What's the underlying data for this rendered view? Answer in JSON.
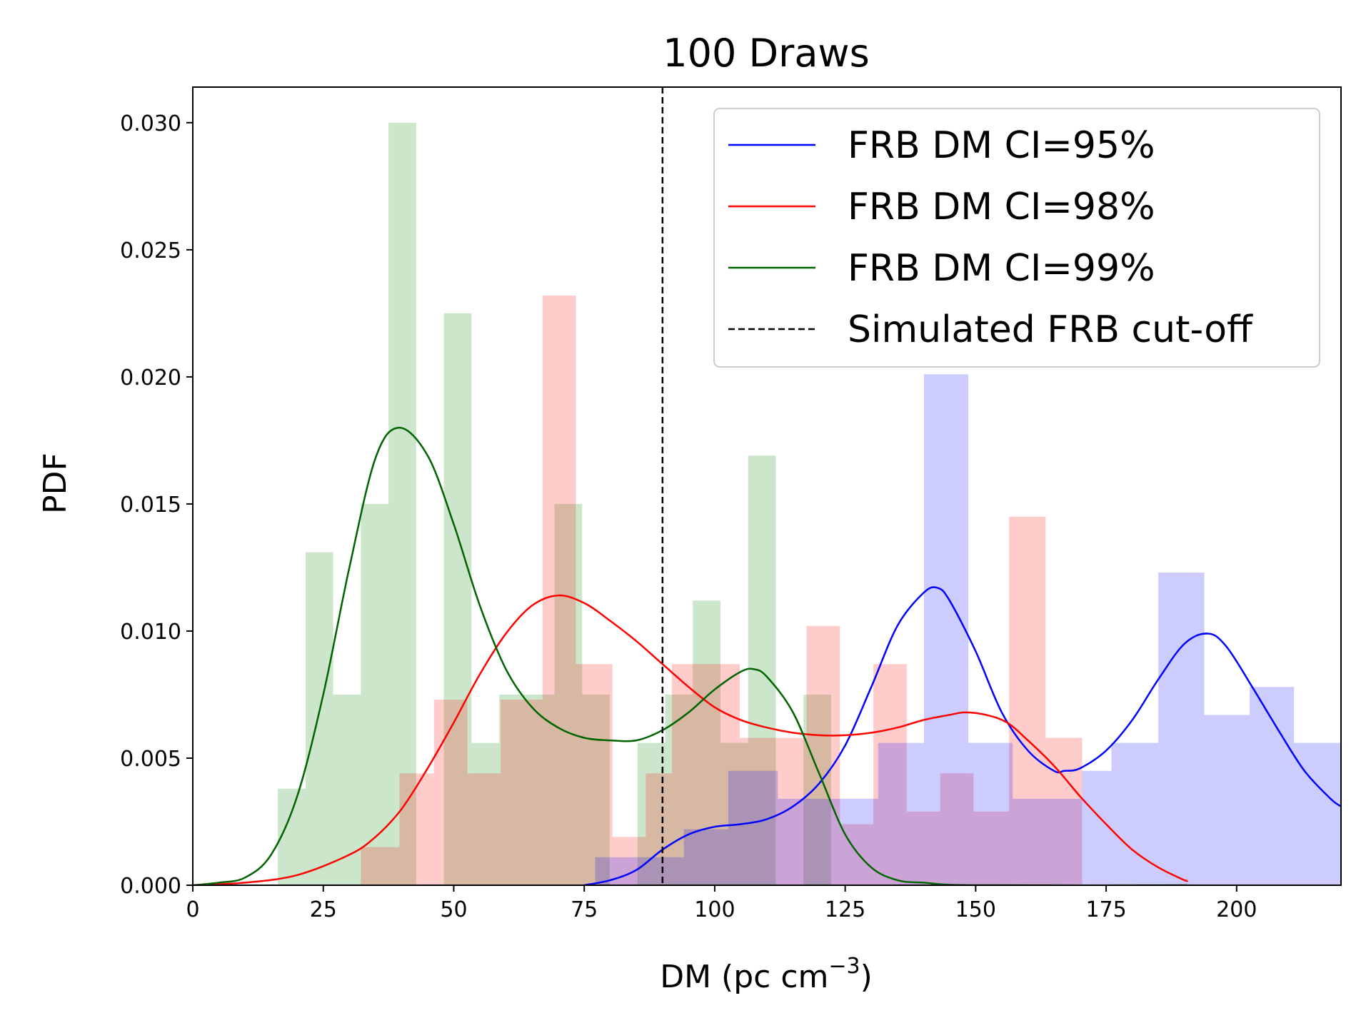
{
  "chart_data": {
    "type": "histogram+line",
    "title": "100 Draws",
    "xlabel": "DM (pc cm",
    "xlabel_sup": "−3",
    "xlabel_close": ")",
    "ylabel": "PDF",
    "xlim": [
      0,
      220
    ],
    "ylim": [
      0,
      0.0314
    ],
    "xticks": [
      0,
      25,
      50,
      75,
      100,
      125,
      150,
      175,
      200
    ],
    "xtick_labels": [
      "0",
      "25",
      "50",
      "75",
      "100",
      "125",
      "150",
      "175",
      "200"
    ],
    "yticks": [
      0.0,
      0.005,
      0.01,
      0.015,
      0.02,
      0.025,
      0.03
    ],
    "ytick_labels": [
      "0.000",
      "0.005",
      "0.010",
      "0.015",
      "0.020",
      "0.025",
      "0.030"
    ],
    "grid": false,
    "legend_position": "top-right",
    "cutoff": {
      "name": "Simulated FRB cut-off",
      "x": 90,
      "color": "#000000",
      "style": "dashed"
    },
    "histograms": [
      {
        "name": "CI=99% histogram",
        "color": "#008000",
        "bins": [
          {
            "x0": 16.3,
            "x1": 21.6,
            "y": 0.0038
          },
          {
            "x0": 21.6,
            "x1": 26.9,
            "y": 0.0131
          },
          {
            "x0": 26.9,
            "x1": 32.2,
            "y": 0.0075
          },
          {
            "x0": 32.2,
            "x1": 37.5,
            "y": 0.015
          },
          {
            "x0": 37.5,
            "x1": 42.8,
            "y": 0.03
          },
          {
            "x0": 42.8,
            "x1": 48.1,
            "y": 0.0
          },
          {
            "x0": 48.1,
            "x1": 53.4,
            "y": 0.0225
          },
          {
            "x0": 53.4,
            "x1": 58.7,
            "y": 0.0056
          },
          {
            "x0": 58.7,
            "x1": 64.0,
            "y": 0.0075
          },
          {
            "x0": 64.0,
            "x1": 69.3,
            "y": 0.0075
          },
          {
            "x0": 69.3,
            "x1": 74.6,
            "y": 0.015
          },
          {
            "x0": 74.6,
            "x1": 79.9,
            "y": 0.0075
          },
          {
            "x0": 79.9,
            "x1": 85.2,
            "y": 0.0
          },
          {
            "x0": 85.2,
            "x1": 90.5,
            "y": 0.0056
          },
          {
            "x0": 90.5,
            "x1": 95.8,
            "y": 0.0075
          },
          {
            "x0": 95.8,
            "x1": 101.1,
            "y": 0.0112
          },
          {
            "x0": 101.1,
            "x1": 106.4,
            "y": 0.0056
          },
          {
            "x0": 106.4,
            "x1": 111.7,
            "y": 0.0169
          },
          {
            "x0": 111.7,
            "x1": 117.0,
            "y": 0.0
          },
          {
            "x0": 117.0,
            "x1": 122.3,
            "y": 0.0075
          }
        ]
      },
      {
        "name": "CI=98% histogram",
        "color": "#ff0000",
        "bins": [
          {
            "x0": 32.2,
            "x1": 39.6,
            "y": 0.0015
          },
          {
            "x0": 39.6,
            "x1": 46.2,
            "y": 0.0044
          },
          {
            "x0": 46.2,
            "x1": 52.6,
            "y": 0.0073
          },
          {
            "x0": 52.6,
            "x1": 59.0,
            "y": 0.0044
          },
          {
            "x0": 59.0,
            "x1": 67.0,
            "y": 0.0073
          },
          {
            "x0": 67.0,
            "x1": 73.4,
            "y": 0.0232
          },
          {
            "x0": 73.4,
            "x1": 80.4,
            "y": 0.0087
          },
          {
            "x0": 80.4,
            "x1": 86.8,
            "y": 0.0019
          },
          {
            "x0": 86.8,
            "x1": 91.8,
            "y": 0.0044
          },
          {
            "x0": 91.8,
            "x1": 98.4,
            "y": 0.0087
          },
          {
            "x0": 98.4,
            "x1": 104.8,
            "y": 0.0087
          },
          {
            "x0": 104.8,
            "x1": 111.2,
            "y": 0.0058
          },
          {
            "x0": 111.2,
            "x1": 117.6,
            "y": 0.0058
          },
          {
            "x0": 117.6,
            "x1": 124.0,
            "y": 0.0102
          },
          {
            "x0": 124.0,
            "x1": 130.4,
            "y": 0.0024
          },
          {
            "x0": 130.4,
            "x1": 136.8,
            "y": 0.0087
          },
          {
            "x0": 136.8,
            "x1": 143.2,
            "y": 0.0029
          },
          {
            "x0": 143.2,
            "x1": 149.6,
            "y": 0.0044
          },
          {
            "x0": 149.6,
            "x1": 156.4,
            "y": 0.0029
          },
          {
            "x0": 156.4,
            "x1": 163.4,
            "y": 0.0145
          },
          {
            "x0": 163.4,
            "x1": 170.4,
            "y": 0.0058
          }
        ]
      },
      {
        "name": "CI=95% histogram",
        "color": "#0000ff",
        "bins": [
          {
            "x0": 77.1,
            "x1": 85.6,
            "y": 0.0011
          },
          {
            "x0": 85.6,
            "x1": 94.1,
            "y": 0.0011
          },
          {
            "x0": 94.1,
            "x1": 102.6,
            "y": 0.0022
          },
          {
            "x0": 102.6,
            "x1": 112.1,
            "y": 0.0045
          },
          {
            "x0": 112.1,
            "x1": 123.6,
            "y": 0.0034
          },
          {
            "x0": 123.6,
            "x1": 131.3,
            "y": 0.0034
          },
          {
            "x0": 131.3,
            "x1": 140.1,
            "y": 0.0056
          },
          {
            "x0": 140.1,
            "x1": 148.6,
            "y": 0.0201
          },
          {
            "x0": 148.6,
            "x1": 157.1,
            "y": 0.0056
          },
          {
            "x0": 157.1,
            "x1": 165.6,
            "y": 0.0034
          },
          {
            "x0": 165.6,
            "x1": 170.4,
            "y": 0.0034
          },
          {
            "x0": 170.4,
            "x1": 176.0,
            "y": 0.0045
          },
          {
            "x0": 176.0,
            "x1": 185.0,
            "y": 0.0056
          },
          {
            "x0": 185.0,
            "x1": 193.8,
            "y": 0.0123
          },
          {
            "x0": 193.8,
            "x1": 202.5,
            "y": 0.0067
          },
          {
            "x0": 202.5,
            "x1": 211.0,
            "y": 0.0078
          },
          {
            "x0": 211.0,
            "x1": 220.0,
            "y": 0.0056
          }
        ]
      }
    ],
    "series": [
      {
        "name": "FRB DM CI=95%",
        "color": "#0000ff",
        "points": [
          [
            75,
            0
          ],
          [
            80,
            0.0002
          ],
          [
            85,
            0.0006
          ],
          [
            90,
            0.0014
          ],
          [
            95,
            0.002
          ],
          [
            100,
            0.0023
          ],
          [
            105,
            0.0024
          ],
          [
            110,
            0.0026
          ],
          [
            115,
            0.0031
          ],
          [
            120,
            0.004
          ],
          [
            125,
            0.0055
          ],
          [
            130,
            0.0078
          ],
          [
            135,
            0.0102
          ],
          [
            140,
            0.0115
          ],
          [
            142.7,
            0.0117
          ],
          [
            145,
            0.0112
          ],
          [
            150,
            0.0092
          ],
          [
            155,
            0.0068
          ],
          [
            160,
            0.0053
          ],
          [
            165,
            0.0045
          ],
          [
            167,
            0.0045
          ],
          [
            170,
            0.0046
          ],
          [
            175,
            0.0053
          ],
          [
            180,
            0.0065
          ],
          [
            185,
            0.0081
          ],
          [
            190,
            0.0095
          ],
          [
            194.5,
            0.0099
          ],
          [
            198,
            0.0094
          ],
          [
            203,
            0.0078
          ],
          [
            208,
            0.0061
          ],
          [
            213,
            0.0045
          ],
          [
            218,
            0.0034
          ],
          [
            220,
            0.0031
          ]
        ]
      },
      {
        "name": "FRB DM CI=98%",
        "color": "#ff0000",
        "points": [
          [
            0,
            0
          ],
          [
            10,
            0.0001
          ],
          [
            20,
            0.0004
          ],
          [
            30,
            0.0012
          ],
          [
            35,
            0.0019
          ],
          [
            40,
            0.003
          ],
          [
            45,
            0.0046
          ],
          [
            50,
            0.0064
          ],
          [
            55,
            0.0083
          ],
          [
            60,
            0.0099
          ],
          [
            65,
            0.011
          ],
          [
            70,
            0.0114
          ],
          [
            75,
            0.0111
          ],
          [
            80,
            0.0104
          ],
          [
            85,
            0.0096
          ],
          [
            90,
            0.0087
          ],
          [
            95,
            0.0078
          ],
          [
            100,
            0.007
          ],
          [
            105,
            0.0065
          ],
          [
            110,
            0.0062
          ],
          [
            115,
            0.006
          ],
          [
            120,
            0.0059
          ],
          [
            125,
            0.0059
          ],
          [
            130,
            0.006
          ],
          [
            135,
            0.0062
          ],
          [
            140,
            0.0065
          ],
          [
            145,
            0.0067
          ],
          [
            148,
            0.0068
          ],
          [
            152,
            0.0067
          ],
          [
            156,
            0.0064
          ],
          [
            160,
            0.0057
          ],
          [
            165,
            0.0047
          ],
          [
            170,
            0.0035
          ],
          [
            175,
            0.0024
          ],
          [
            180,
            0.0014
          ],
          [
            185,
            0.0007
          ],
          [
            190,
            0.0002
          ],
          [
            190.5,
            0.0002
          ]
        ]
      },
      {
        "name": "FRB DM CI=99%",
        "color": "#006400",
        "points": [
          [
            0,
            0
          ],
          [
            5,
            0.0001
          ],
          [
            10,
            0.0003
          ],
          [
            15,
            0.0012
          ],
          [
            20,
            0.0035
          ],
          [
            25,
            0.0075
          ],
          [
            30,
            0.0125
          ],
          [
            35,
            0.0168
          ],
          [
            39.5,
            0.018
          ],
          [
            45,
            0.0169
          ],
          [
            50,
            0.0142
          ],
          [
            55,
            0.011
          ],
          [
            60,
            0.0085
          ],
          [
            65,
            0.007
          ],
          [
            70,
            0.0062
          ],
          [
            75,
            0.0058
          ],
          [
            80,
            0.0057
          ],
          [
            85,
            0.0057
          ],
          [
            90,
            0.0061
          ],
          [
            95,
            0.0068
          ],
          [
            100,
            0.0077
          ],
          [
            105,
            0.0084
          ],
          [
            107.5,
            0.0085
          ],
          [
            110,
            0.0082
          ],
          [
            115,
            0.0068
          ],
          [
            120,
            0.0044
          ],
          [
            125,
            0.002
          ],
          [
            130,
            0.0007
          ],
          [
            135,
            0.0002
          ],
          [
            140,
            0.0001
          ],
          [
            150,
            0.0
          ],
          [
            190.5,
            0.0
          ]
        ]
      }
    ],
    "legend": [
      {
        "label": "FRB DM CI=95%",
        "color": "#0000ff",
        "style": "solid"
      },
      {
        "label": "FRB DM CI=98%",
        "color": "#ff0000",
        "style": "solid"
      },
      {
        "label": "FRB DM CI=99%",
        "color": "#006400",
        "style": "solid"
      },
      {
        "label": "Simulated FRB cut-off",
        "color": "#000000",
        "style": "dashed"
      }
    ]
  }
}
